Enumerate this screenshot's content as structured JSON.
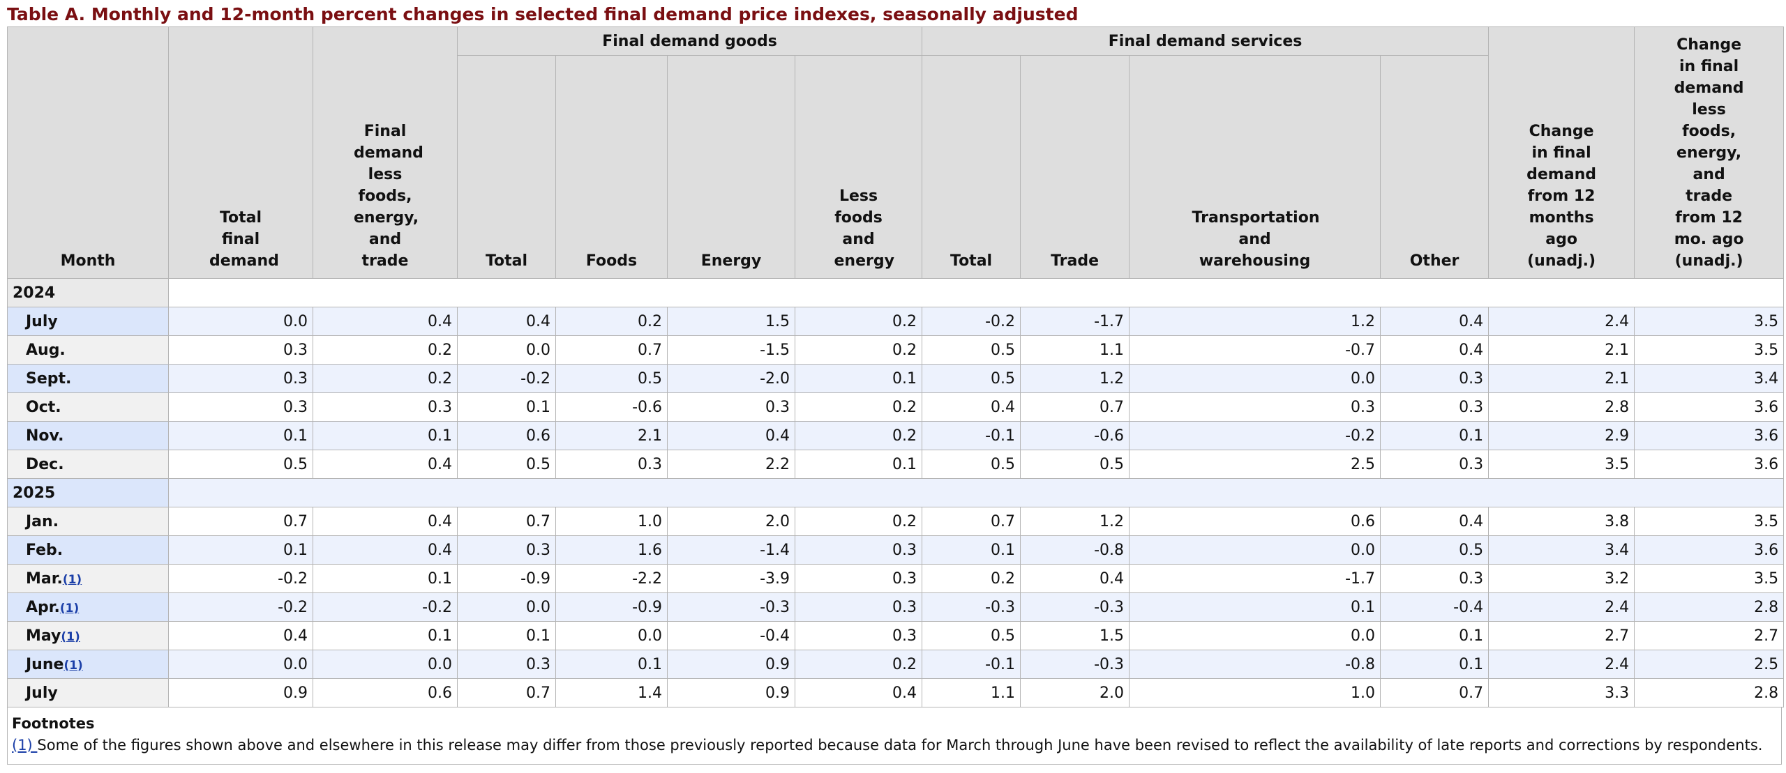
{
  "title": "Table A. Monthly and 12-month percent changes in selected final demand price indexes, seasonally adjusted",
  "header": {
    "month": "Month",
    "total_final_demand": "Total final demand",
    "fd_less": "Final demand less foods, energy, and trade",
    "goods_group": "Final demand goods",
    "goods_total": "Total",
    "goods_foods": "Foods",
    "goods_energy": "Energy",
    "goods_less": "Less foods and energy",
    "services_group": "Final demand services",
    "svc_total": "Total",
    "svc_trade": "Trade",
    "svc_transport": "Transportation and warehousing",
    "svc_other": "Other",
    "chg12": "Change in final demand from 12 months ago (unadj.)",
    "chg12_less": "Change in final demand less foods, energy, and trade from 12 mo. ago (unadj.)"
  },
  "years": {
    "y2024": "2024",
    "y2025": "2025"
  },
  "rows": [
    {
      "month": "July",
      "fn": "",
      "values": [
        "0.0",
        "0.4",
        "0.4",
        "0.2",
        "1.5",
        "0.2",
        "-0.2",
        "-1.7",
        "1.2",
        "0.4",
        "2.4",
        "3.5"
      ]
    },
    {
      "month": "Aug.",
      "fn": "",
      "values": [
        "0.3",
        "0.2",
        "0.0",
        "0.7",
        "-1.5",
        "0.2",
        "0.5",
        "1.1",
        "-0.7",
        "0.4",
        "2.1",
        "3.5"
      ]
    },
    {
      "month": "Sept.",
      "fn": "",
      "values": [
        "0.3",
        "0.2",
        "-0.2",
        "0.5",
        "-2.0",
        "0.1",
        "0.5",
        "1.2",
        "0.0",
        "0.3",
        "2.1",
        "3.4"
      ]
    },
    {
      "month": "Oct.",
      "fn": "",
      "values": [
        "0.3",
        "0.3",
        "0.1",
        "-0.6",
        "0.3",
        "0.2",
        "0.4",
        "0.7",
        "0.3",
        "0.3",
        "2.8",
        "3.6"
      ]
    },
    {
      "month": "Nov.",
      "fn": "",
      "values": [
        "0.1",
        "0.1",
        "0.6",
        "2.1",
        "0.4",
        "0.2",
        "-0.1",
        "-0.6",
        "-0.2",
        "0.1",
        "2.9",
        "3.6"
      ]
    },
    {
      "month": "Dec.",
      "fn": "",
      "values": [
        "0.5",
        "0.4",
        "0.5",
        "0.3",
        "2.2",
        "0.1",
        "0.5",
        "0.5",
        "2.5",
        "0.3",
        "3.5",
        "3.6"
      ]
    },
    {
      "month": "Jan.",
      "fn": "",
      "values": [
        "0.7",
        "0.4",
        "0.7",
        "1.0",
        "2.0",
        "0.2",
        "0.7",
        "1.2",
        "0.6",
        "0.4",
        "3.8",
        "3.5"
      ]
    },
    {
      "month": "Feb.",
      "fn": "",
      "values": [
        "0.1",
        "0.4",
        "0.3",
        "1.6",
        "-1.4",
        "0.3",
        "0.1",
        "-0.8",
        "0.0",
        "0.5",
        "3.4",
        "3.6"
      ]
    },
    {
      "month": "Mar.",
      "fn": "(1)",
      "values": [
        "-0.2",
        "0.1",
        "-0.9",
        "-2.2",
        "-3.9",
        "0.3",
        "0.2",
        "0.4",
        "-1.7",
        "0.3",
        "3.2",
        "3.5"
      ]
    },
    {
      "month": "Apr.",
      "fn": "(1)",
      "values": [
        "-0.2",
        "-0.2",
        "0.0",
        "-0.9",
        "-0.3",
        "0.3",
        "-0.3",
        "-0.3",
        "0.1",
        "-0.4",
        "2.4",
        "2.8"
      ]
    },
    {
      "month": "May",
      "fn": "(1)",
      "values": [
        "0.4",
        "0.1",
        "0.1",
        "0.0",
        "-0.4",
        "0.3",
        "0.5",
        "1.5",
        "0.0",
        "0.1",
        "2.7",
        "2.7"
      ]
    },
    {
      "month": "June",
      "fn": "(1)",
      "values": [
        "0.0",
        "0.0",
        "0.3",
        "0.1",
        "0.9",
        "0.2",
        "-0.1",
        "-0.3",
        "-0.8",
        "0.1",
        "2.4",
        "2.5"
      ]
    },
    {
      "month": "July",
      "fn": "",
      "values": [
        "0.9",
        "0.6",
        "0.7",
        "1.4",
        "0.9",
        "0.4",
        "1.1",
        "2.0",
        "1.0",
        "0.7",
        "3.3",
        "2.8"
      ]
    }
  ],
  "footnotes": {
    "heading": "Footnotes",
    "ref": "(1) ",
    "text": "Some of the figures shown above and elsewhere in this release may differ from those previously reported because data for March through June have been revised to reflect the availability of late reports and corrections by respondents."
  },
  "colors": {
    "title": "#7a0f12",
    "header_bg": "#dedede",
    "alt_row": "#edf2fd",
    "link": "#1b3fa8"
  }
}
